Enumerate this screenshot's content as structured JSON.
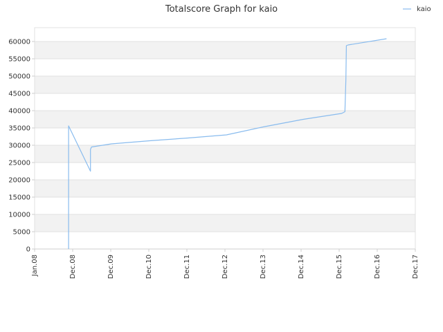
{
  "chart_data": {
    "type": "line",
    "title": "Totalscore Graph for kaio",
    "xlabel": "",
    "ylabel": "",
    "x_tick_labels": [
      "Jan.08",
      "Dec.08",
      "Dec.09",
      "Dec.10",
      "Dec.11",
      "Dec.12",
      "Dec.13",
      "Dec.14",
      "Dec.15",
      "Dec.16",
      "Dec.17"
    ],
    "y_ticks": [
      0,
      5000,
      10000,
      15000,
      20000,
      25000,
      30000,
      35000,
      40000,
      45000,
      50000,
      55000,
      60000
    ],
    "ylim": [
      0,
      64000
    ],
    "xlim": [
      "2008-01",
      "2017-12"
    ],
    "grid": true,
    "legend_position": "top-right",
    "colors": {
      "series": "#88bbee",
      "band": "#f2f2f2",
      "grid": "#e0e0e0"
    },
    "series": [
      {
        "name": "kaio",
        "points": [
          [
            "2008-11-20",
            0
          ],
          [
            "2008-11-20",
            35600
          ],
          [
            "2009-06-15",
            22500
          ],
          [
            "2009-06-15",
            28800
          ],
          [
            "2009-06-25",
            29500
          ],
          [
            "2010-01-01",
            30400
          ],
          [
            "2011-01-01",
            31300
          ],
          [
            "2012-01-01",
            32100
          ],
          [
            "2012-12-31",
            33000
          ],
          [
            "2014-01-01",
            35400
          ],
          [
            "2015-01-01",
            37500
          ],
          [
            "2015-12-31",
            39200
          ],
          [
            "2016-02-01",
            39700
          ],
          [
            "2016-02-10",
            49000
          ],
          [
            "2016-02-15",
            58800
          ],
          [
            "2016-03-01",
            59000
          ],
          [
            "2017-03-01",
            60800
          ]
        ]
      }
    ]
  }
}
